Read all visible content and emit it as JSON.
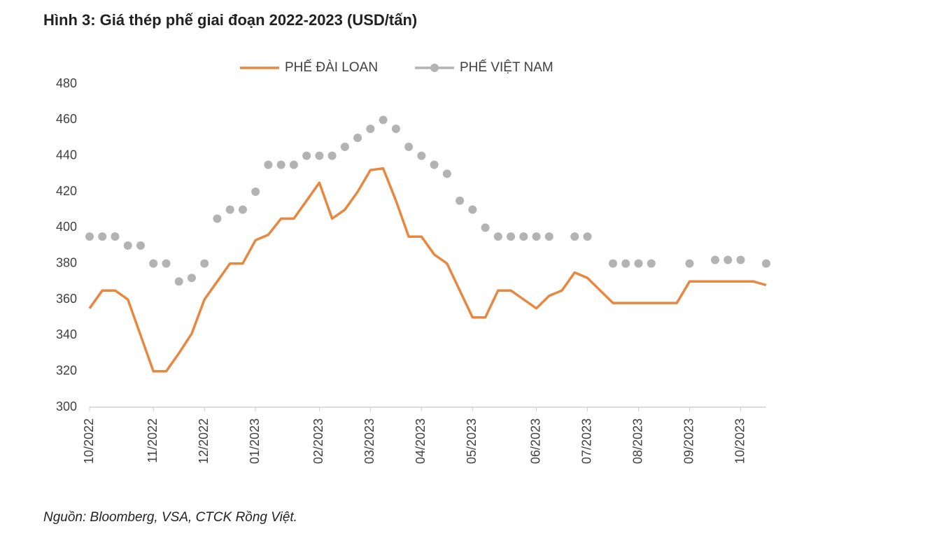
{
  "chart_data": {
    "type": "line",
    "title": "Hình 3: Giá thép phế giai đoạn 2022-2023 (USD/tấn)",
    "source": "Nguồn: Bloomberg, VSA, CTCK Rồng Việt.",
    "categories": [
      "10/2022",
      null,
      null,
      null,
      null,
      "11/2022",
      null,
      null,
      null,
      "12/2022",
      null,
      null,
      null,
      "01/2023",
      null,
      null,
      null,
      null,
      "02/2023",
      null,
      null,
      null,
      "03/2023",
      null,
      null,
      null,
      "04/2023",
      null,
      null,
      null,
      "05/2023",
      null,
      null,
      null,
      null,
      "06/2023",
      null,
      null,
      null,
      "07/2023",
      null,
      null,
      null,
      "08/2023",
      null,
      null,
      null,
      "09/2023",
      null,
      null,
      null,
      "10/2023",
      null,
      null
    ],
    "series": [
      {
        "name": "PHẾ ĐÀI LOAN",
        "color": "#e8873f",
        "style": "step-line",
        "values": [
          355,
          365,
          365,
          360,
          340,
          320,
          320,
          330,
          341,
          360,
          370,
          380,
          380,
          393,
          396,
          405,
          405,
          415,
          425,
          405,
          410,
          420,
          432,
          433,
          415,
          395,
          395,
          385,
          380,
          365,
          350,
          350,
          365,
          365,
          360,
          355,
          362,
          365,
          375,
          372,
          365,
          358,
          358,
          358,
          358,
          358,
          358,
          370,
          370,
          370,
          370,
          370,
          370,
          368
        ]
      },
      {
        "name": "PHẾ VIỆT NAM",
        "color": "#b3b3b3",
        "style": "dots",
        "values": [
          395,
          395,
          395,
          390,
          390,
          380,
          380,
          370,
          372,
          380,
          405,
          410,
          410,
          420,
          435,
          435,
          435,
          440,
          440,
          440,
          445,
          450,
          455,
          460,
          455,
          445,
          440,
          435,
          430,
          415,
          410,
          400,
          395,
          395,
          395,
          395,
          395,
          null,
          395,
          395,
          null,
          380,
          380,
          380,
          380,
          null,
          null,
          380,
          null,
          382,
          382,
          382,
          null,
          380
        ]
      }
    ],
    "ylim": [
      300,
      480
    ],
    "yticks": [
      300,
      320,
      340,
      360,
      380,
      400,
      420,
      440,
      460,
      480
    ],
    "grid": false,
    "legend": "top"
  }
}
